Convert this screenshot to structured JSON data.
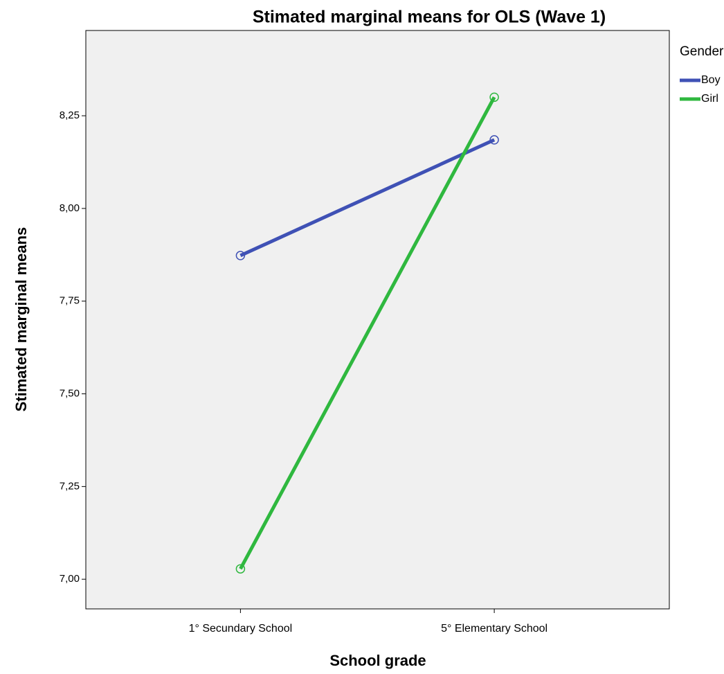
{
  "chart_data": {
    "type": "line",
    "title": "Stimated marginal means for OLS (Wave 1)",
    "xlabel": "School grade",
    "ylabel": "Stimated marginal means",
    "legend_title": "Gender",
    "categories": [
      "1° Secundary School",
      "5° Elementary School"
    ],
    "series": [
      {
        "name": "Boy",
        "color": "#3f51b5",
        "values": [
          7.873,
          8.185
        ]
      },
      {
        "name": "Girl",
        "color": "#2fb83f",
        "values": [
          7.028,
          8.3
        ]
      }
    ],
    "ylim": [
      6.92,
      8.48
    ],
    "yticks": [
      {
        "value": 7.0,
        "label": "7,00"
      },
      {
        "value": 7.25,
        "label": "7,25"
      },
      {
        "value": 7.5,
        "label": "7,50"
      },
      {
        "value": 7.75,
        "label": "7,75"
      },
      {
        "value": 8.0,
        "label": "8,00"
      },
      {
        "value": 8.25,
        "label": "8,25"
      }
    ],
    "legend": "right"
  }
}
